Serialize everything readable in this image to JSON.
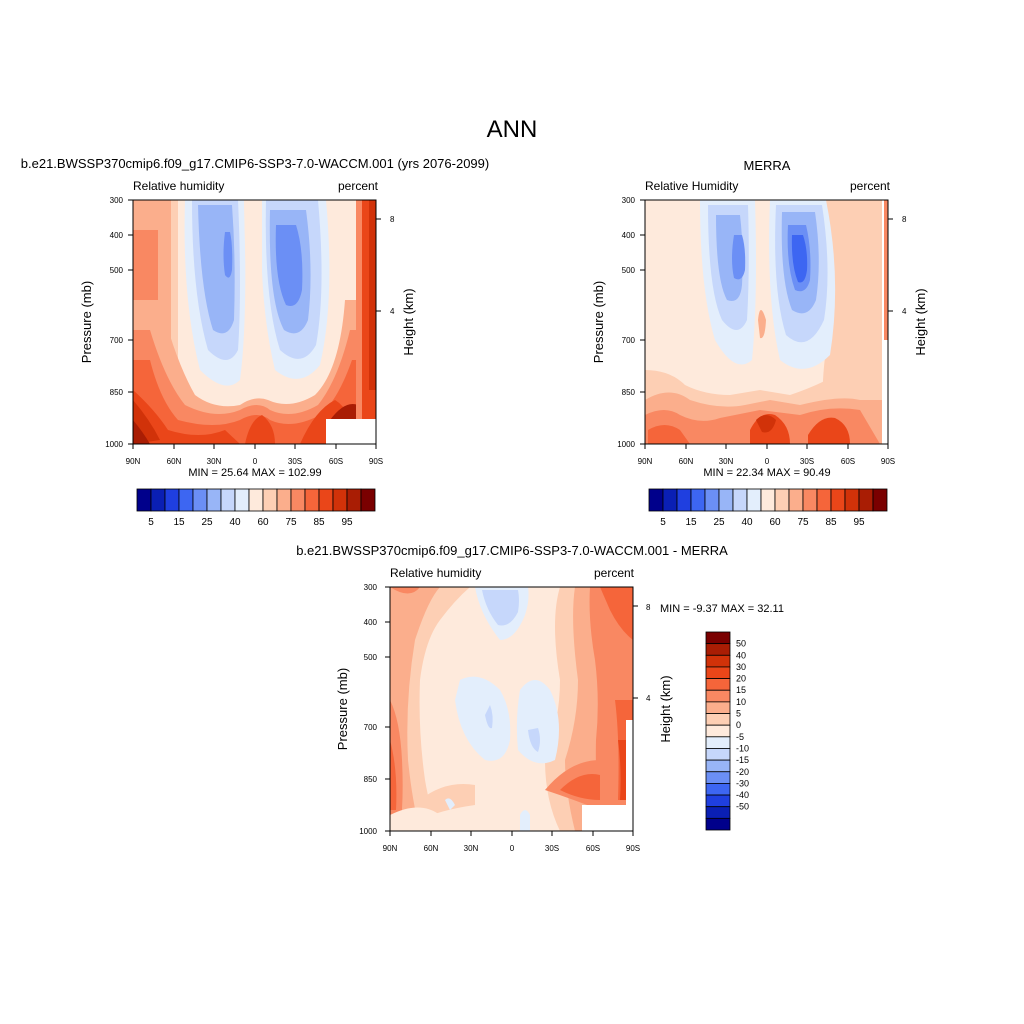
{
  "figure": {
    "title": "ANN"
  },
  "chart_data": [
    {
      "id": "model",
      "type": "heatmap",
      "title": "b.e21.BWSSP370cmip6.f09_g17.CMIP6-SSP3-7.0-WACCM.001 (yrs 2076-2099)",
      "left_string": "Relative humidity",
      "right_string": "percent",
      "ylabel": "Pressure (mb)",
      "y2label": "Height (km)",
      "xticks": [
        "90N",
        "60N",
        "30N",
        "0",
        "30S",
        "60S",
        "90S"
      ],
      "yticks": [
        "300",
        "400",
        "500",
        "700",
        "850",
        "1000"
      ],
      "y2ticks": [
        "8",
        "4"
      ],
      "ylim": [
        1000,
        300
      ],
      "y_scale": "log",
      "stats": {
        "min_label": "MIN =",
        "min": "25.64",
        "max_label": "MAX =",
        "max": "102.99"
      },
      "colorbar": {
        "orientation": "horizontal",
        "labels": [
          "5",
          "15",
          "25",
          "40",
          "60",
          "75",
          "85",
          "95"
        ],
        "colors": [
          "#00008b",
          "#0a1fb4",
          "#1f3fe0",
          "#3d66f2",
          "#6b8ff5",
          "#98b5f7",
          "#c6d7fb",
          "#e3eefc",
          "#feeadc",
          "#fdcfb4",
          "#fbae8c",
          "#f98862",
          "#f5653a",
          "#ea4619",
          "#d13209",
          "#a91d04",
          "#7a0000"
        ]
      }
    },
    {
      "id": "obs",
      "type": "heatmap",
      "title": "MERRA",
      "left_string": "Relative Humidity",
      "right_string": "percent",
      "ylabel": "Pressure (mb)",
      "y2label": "Height (km)",
      "xticks": [
        "90N",
        "60N",
        "30N",
        "0",
        "30S",
        "60S",
        "90S"
      ],
      "yticks": [
        "300",
        "400",
        "500",
        "700",
        "850",
        "1000"
      ],
      "y2ticks": [
        "8",
        "4"
      ],
      "ylim": [
        1000,
        300
      ],
      "y_scale": "log",
      "stats": {
        "min_label": "MIN =",
        "min": "22.34",
        "max_label": "MAX =",
        "max": "90.49"
      },
      "colorbar": {
        "orientation": "horizontal",
        "labels": [
          "5",
          "15",
          "25",
          "40",
          "60",
          "75",
          "85",
          "95"
        ],
        "colors": [
          "#00008b",
          "#0a1fb4",
          "#1f3fe0",
          "#3d66f2",
          "#6b8ff5",
          "#98b5f7",
          "#c6d7fb",
          "#e3eefc",
          "#feeadc",
          "#fdcfb4",
          "#fbae8c",
          "#f98862",
          "#f5653a",
          "#ea4619",
          "#d13209",
          "#a91d04",
          "#7a0000"
        ]
      }
    },
    {
      "id": "diff",
      "type": "heatmap",
      "title": "b.e21.BWSSP370cmip6.f09_g17.CMIP6-SSP3-7.0-WACCM.001 - MERRA",
      "left_string": "Relative humidity",
      "right_string": "percent",
      "ylabel": "Pressure (mb)",
      "y2label": "Height (km)",
      "xticks": [
        "90N",
        "60N",
        "30N",
        "0",
        "30S",
        "60S",
        "90S"
      ],
      "yticks": [
        "300",
        "400",
        "500",
        "700",
        "850",
        "1000"
      ],
      "y2ticks": [
        "8",
        "4"
      ],
      "ylim": [
        1000,
        300
      ],
      "y_scale": "log",
      "stats": {
        "min_label": "MIN =",
        "min": "-9.37",
        "max_label": "MAX =",
        "max": "32.11"
      },
      "colorbar": {
        "orientation": "vertical",
        "labels": [
          "50",
          "40",
          "30",
          "20",
          "15",
          "10",
          "5",
          "0",
          "-5",
          "-10",
          "-15",
          "-20",
          "-30",
          "-40",
          "-50"
        ],
        "colors": [
          "#7a0000",
          "#a91d04",
          "#d13209",
          "#ea4619",
          "#f5653a",
          "#f98862",
          "#fbae8c",
          "#fdcfb4",
          "#feeadc",
          "#e3eefc",
          "#c6d7fb",
          "#98b5f7",
          "#6b8ff5",
          "#3d66f2",
          "#1f3fe0",
          "#0a1fb4",
          "#00008b"
        ]
      }
    }
  ]
}
